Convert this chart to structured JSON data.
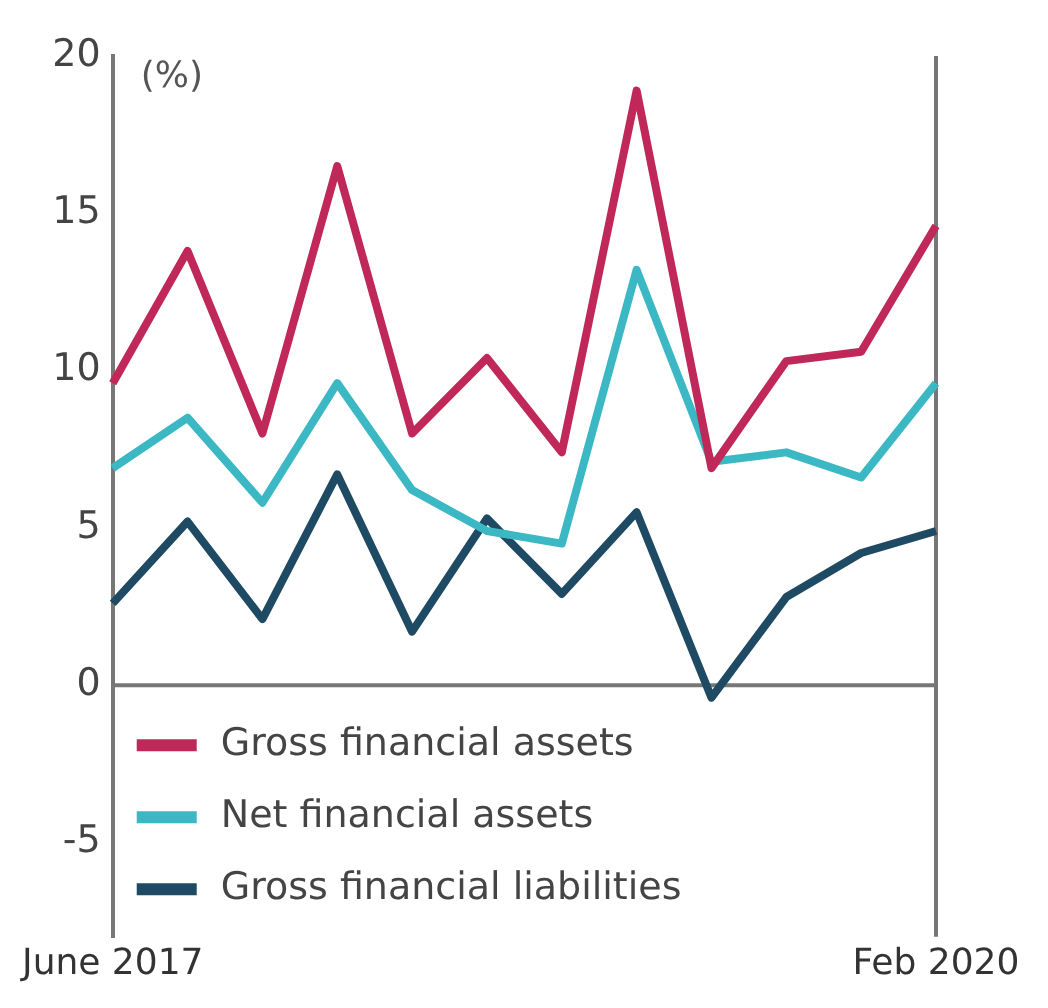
{
  "chart_data": {
    "type": "line",
    "ylabel": "(%)",
    "categories": [
      "June 2017",
      null,
      null,
      null,
      null,
      null,
      null,
      null,
      null,
      null,
      null,
      "Feb 2020"
    ],
    "series": [
      {
        "name": "Gross financial assets",
        "color": "#c0285a",
        "values": [
          9.6,
          13.8,
          8.0,
          16.5,
          8.0,
          10.4,
          7.4,
          18.9,
          6.9,
          10.3,
          10.6,
          14.6
        ]
      },
      {
        "name": "Net financial assets",
        "color": "#3bb8c4",
        "values": [
          6.9,
          8.5,
          5.8,
          9.6,
          6.2,
          4.9,
          4.5,
          13.2,
          7.1,
          7.4,
          6.6,
          9.6
        ]
      },
      {
        "name": "Gross financial liabilities",
        "color": "#1f4a63",
        "values": [
          2.6,
          5.2,
          2.1,
          6.7,
          1.7,
          5.3,
          2.9,
          5.5,
          -0.4,
          2.8,
          4.2,
          4.9
        ]
      }
    ],
    "ylim": [
      -8,
      20
    ],
    "yticks": [
      -5,
      0,
      5,
      10,
      15,
      20
    ],
    "ref_lines": [
      {
        "axis": "y",
        "value": 0,
        "color": "#777777"
      }
    ],
    "grid": false,
    "legend": "bottom left",
    "marker": "none",
    "line_style": "solid"
  }
}
